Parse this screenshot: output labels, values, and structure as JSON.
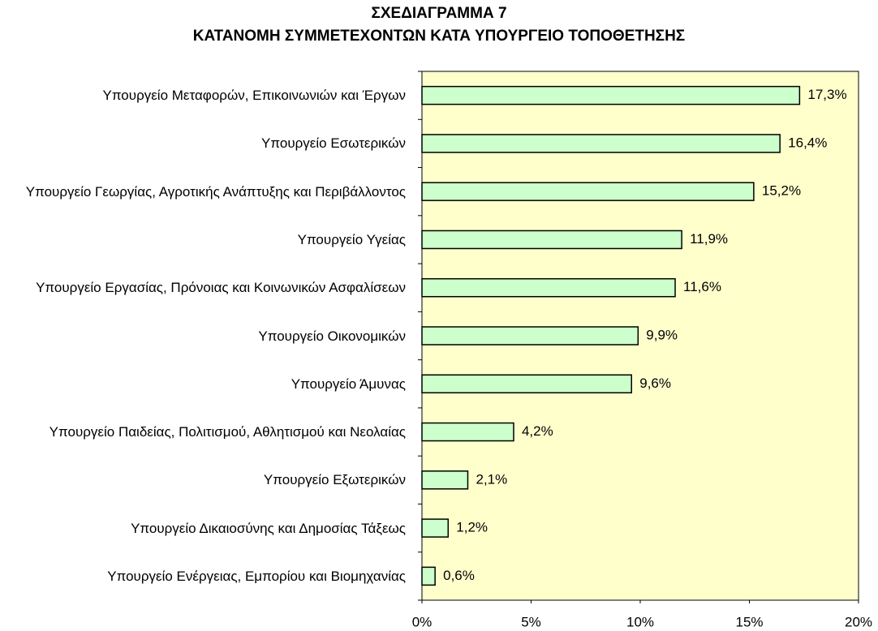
{
  "chart_data": {
    "type": "hbar",
    "title": "ΣΧΕΔΙΑΓΡΑΜΜΑ 7",
    "subtitle": "ΚΑΤΑΝΟΜΗ ΣΥΜΜΕΤΕΧΟΝΤΩΝ ΚΑΤΑ ΥΠΟΥΡΓΕΙΟ ΤΟΠΟΘΕΤΗΣΗΣ",
    "categories": [
      "Υπουργείο Μεταφορών, Επικοινωνιών και Έργων",
      "Υπουργείο Εσωτερικών",
      "Υπουργείο Γεωργίας, Αγροτικής Ανάπτυξης και Περιβάλλοντος",
      "Υπουργείο Υγείας",
      "Υπουργείο Εργασίας, Πρόνοιας και Κοινωνικών Ασφαλίσεων",
      "Υπουργείο Οικονομικών",
      "Υπουργείο Άμυνας",
      "Υπουργείο Παιδείας, Πολιτισμού, Αθλητισμού και Νεολαίας",
      "Υπουργείο Εξωτερικών",
      "Υπουργείο Δικαιοσύνης και Δημοσίας Τάξεως",
      "Υπουργείο Ενέργειας, Εμπορίου και Βιομηχανίας"
    ],
    "values": [
      17.3,
      16.4,
      15.2,
      11.9,
      11.6,
      9.9,
      9.6,
      4.2,
      2.1,
      1.2,
      0.6
    ],
    "value_labels": [
      "17,3%",
      "16,4%",
      "15,2%",
      "11,9%",
      "11,6%",
      "9,9%",
      "9,6%",
      "4,2%",
      "2,1%",
      "1,2%",
      "0,6%"
    ],
    "color": "#ccffcc",
    "plot_background": "#ffffcc",
    "xlim": [
      0,
      20
    ],
    "xticks": [
      {
        "value": 0,
        "label": "0%"
      },
      {
        "value": 5,
        "label": "5%"
      },
      {
        "value": 10,
        "label": "10%"
      },
      {
        "value": 15,
        "label": "15%"
      },
      {
        "value": 20,
        "label": "20%"
      }
    ]
  }
}
